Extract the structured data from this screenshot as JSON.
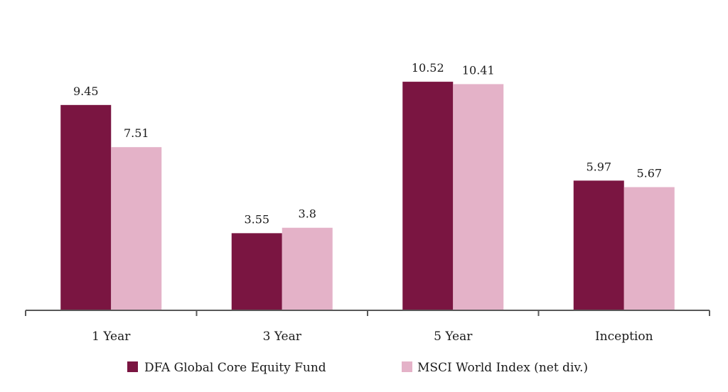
{
  "chart_data": {
    "type": "bar",
    "title": "",
    "xlabel": "",
    "ylabel": "",
    "categories": [
      "1 Year",
      "3 Year",
      "5 Year",
      "Inception"
    ],
    "series": [
      {
        "name": "DFA Global Core Equity Fund",
        "color": "#7a1541",
        "values": [
          9.45,
          3.55,
          10.52,
          5.97
        ],
        "labels": [
          "9.45",
          "3.55",
          "10.52",
          "5.97"
        ]
      },
      {
        "name": "MSCI World Index (net div.)",
        "color": "#e4b2c8",
        "values": [
          7.51,
          3.8,
          10.41,
          5.67
        ],
        "labels": [
          "7.51",
          "3.8",
          "10.41",
          "5.67"
        ]
      }
    ],
    "ylim": [
      0,
      14
    ],
    "grid": false,
    "data_labels": true,
    "legend_position": "bottom",
    "axis_color": "#595959"
  }
}
